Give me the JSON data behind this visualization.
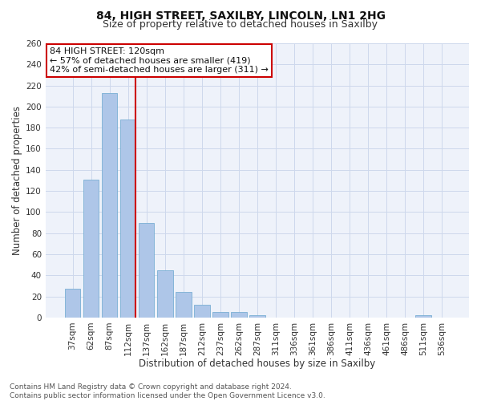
{
  "title": "84, HIGH STREET, SAXILBY, LINCOLN, LN1 2HG",
  "subtitle": "Size of property relative to detached houses in Saxilby",
  "xlabel": "Distribution of detached houses by size in Saxilby",
  "ylabel": "Number of detached properties",
  "categories": [
    "37sqm",
    "62sqm",
    "87sqm",
    "112sqm",
    "137sqm",
    "162sqm",
    "187sqm",
    "212sqm",
    "237sqm",
    "262sqm",
    "287sqm",
    "311sqm",
    "336sqm",
    "361sqm",
    "386sqm",
    "411sqm",
    "436sqm",
    "461sqm",
    "486sqm",
    "511sqm",
    "536sqm"
  ],
  "values": [
    27,
    131,
    213,
    188,
    90,
    45,
    24,
    12,
    5,
    5,
    2,
    0,
    0,
    0,
    0,
    0,
    0,
    0,
    0,
    2,
    0
  ],
  "bar_color": "#aec6e8",
  "bar_edge_color": "#7aafd4",
  "vline_color": "#cc0000",
  "annotation_lines": [
    "84 HIGH STREET: 120sqm",
    "← 57% of detached houses are smaller (419)",
    "42% of semi-detached houses are larger (311) →"
  ],
  "annotation_box_color": "#cc0000",
  "grid_color": "#cdd8ec",
  "background_color": "#eef2fa",
  "ylim": [
    0,
    260
  ],
  "yticks": [
    0,
    20,
    40,
    60,
    80,
    100,
    120,
    140,
    160,
    180,
    200,
    220,
    240,
    260
  ],
  "footnote": "Contains HM Land Registry data © Crown copyright and database right 2024.\nContains public sector information licensed under the Open Government Licence v3.0.",
  "title_fontsize": 10,
  "subtitle_fontsize": 9,
  "xlabel_fontsize": 8.5,
  "ylabel_fontsize": 8.5,
  "tick_fontsize": 7.5,
  "annotation_fontsize": 8,
  "footnote_fontsize": 6.5
}
